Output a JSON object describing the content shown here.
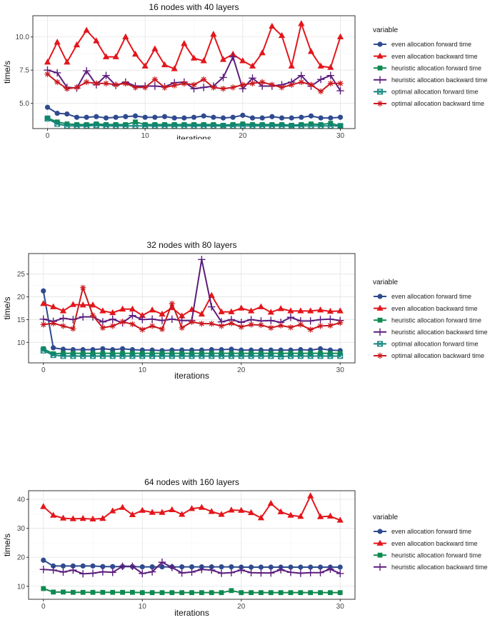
{
  "styles": {
    "even allocation forward time": {
      "color": "#2f4b8f",
      "shape": "circle"
    },
    "even allocation backward time": {
      "color": "#e3161b",
      "shape": "triangle"
    },
    "heuristic allocation forward time": {
      "color": "#0f8a4f",
      "shape": "square"
    },
    "heuristic allocation backward time": {
      "color": "#5b1d7d",
      "shape": "plus"
    },
    "optimal allocation forward time": {
      "color": "#12857e",
      "shape": "square-x"
    },
    "optimal allocation backward time": {
      "color": "#c9181e",
      "shape": "asterisk"
    }
  },
  "chart_data": [
    {
      "type": "line",
      "title": "16 nodes with 40 layers",
      "xlabel": "iterations",
      "ylabel": "time/s",
      "legend_title": "variable",
      "legend_position": "right",
      "xlim": [
        -1.5,
        31.5
      ],
      "ylim": [
        3.1,
        11.6
      ],
      "xticks": [
        0,
        10,
        20,
        30
      ],
      "yticks": [
        5.0,
        7.5,
        10.0
      ],
      "ytick_labels": [
        "5.0",
        "7.5",
        "10.0"
      ],
      "grid": true,
      "x": [
        0,
        1,
        2,
        3,
        4,
        5,
        6,
        7,
        8,
        9,
        10,
        11,
        12,
        13,
        14,
        15,
        16,
        17,
        18,
        19,
        20,
        21,
        22,
        23,
        24,
        25,
        26,
        27,
        28,
        29,
        30
      ],
      "series": [
        {
          "name": "even allocation forward time",
          "values": [
            4.7,
            4.25,
            4.2,
            3.95,
            3.95,
            4.0,
            3.9,
            3.95,
            4.0,
            4.05,
            3.95,
            3.95,
            4.0,
            3.9,
            3.9,
            3.95,
            4.05,
            3.95,
            3.9,
            3.95,
            4.1,
            3.9,
            3.9,
            4.0,
            3.9,
            3.9,
            3.95,
            4.05,
            3.9,
            3.9,
            3.95
          ]
        },
        {
          "name": "even allocation backward time",
          "values": [
            8.1,
            9.6,
            8.1,
            9.4,
            10.5,
            9.7,
            8.5,
            8.5,
            10.0,
            8.7,
            7.8,
            9.1,
            7.9,
            7.6,
            9.5,
            8.4,
            8.2,
            10.2,
            8.3,
            8.7,
            8.2,
            7.8,
            8.8,
            10.8,
            10.1,
            7.8,
            11.0,
            8.9,
            7.8,
            7.7,
            10.0
          ]
        },
        {
          "name": "heuristic allocation forward time",
          "values": [
            3.9,
            3.6,
            3.45,
            3.4,
            3.4,
            3.45,
            3.4,
            3.4,
            3.4,
            3.6,
            3.4,
            3.4,
            3.4,
            3.4,
            3.4,
            3.4,
            3.4,
            3.4,
            3.35,
            3.4,
            3.45,
            3.4,
            3.4,
            3.4,
            3.4,
            3.35,
            3.4,
            3.45,
            3.4,
            3.5,
            3.3
          ]
        },
        {
          "name": "heuristic allocation backward time",
          "values": [
            7.5,
            7.3,
            6.2,
            6.15,
            7.45,
            6.4,
            7.1,
            6.35,
            6.6,
            6.3,
            6.3,
            6.3,
            6.25,
            6.55,
            6.6,
            6.1,
            6.2,
            6.3,
            6.95,
            8.5,
            6.1,
            6.9,
            6.3,
            6.3,
            6.4,
            6.6,
            7.1,
            6.3,
            6.8,
            7.1,
            5.95
          ]
        },
        {
          "name": "optimal allocation forward time",
          "values": [
            3.85,
            3.45,
            3.3,
            3.3,
            3.3,
            3.35,
            3.3,
            3.3,
            3.3,
            3.3,
            3.3,
            3.3,
            3.3,
            3.3,
            3.3,
            3.3,
            3.3,
            3.3,
            3.3,
            3.3,
            3.3,
            3.3,
            3.3,
            3.3,
            3.3,
            3.3,
            3.3,
            3.3,
            3.3,
            3.3,
            3.3
          ]
        },
        {
          "name": "optimal allocation backward time",
          "values": [
            7.2,
            6.6,
            6.1,
            6.2,
            6.6,
            6.5,
            6.5,
            6.4,
            6.5,
            6.2,
            6.2,
            6.8,
            6.2,
            6.35,
            6.5,
            6.4,
            6.8,
            6.2,
            6.1,
            6.2,
            6.4,
            6.5,
            6.6,
            6.4,
            6.2,
            6.4,
            6.6,
            6.4,
            5.9,
            6.5,
            6.5
          ]
        }
      ]
    },
    {
      "type": "line",
      "title": "32 nodes with 80 layers",
      "xlabel": "iterations",
      "ylabel": "time/s",
      "legend_title": "variable",
      "legend_position": "right",
      "xlim": [
        -1.5,
        31.5
      ],
      "ylim": [
        5.5,
        29.5
      ],
      "xticks": [
        0,
        10,
        20,
        30
      ],
      "yticks": [
        10,
        15,
        20,
        25
      ],
      "ytick_labels": [
        "10",
        "15",
        "20",
        "25"
      ],
      "grid": true,
      "x": [
        0,
        1,
        2,
        3,
        4,
        5,
        6,
        7,
        8,
        9,
        10,
        11,
        12,
        13,
        14,
        15,
        16,
        17,
        18,
        19,
        20,
        21,
        22,
        23,
        24,
        25,
        26,
        27,
        28,
        29,
        30
      ],
      "series": [
        {
          "name": "even allocation forward time",
          "values": [
            21.3,
            8.8,
            8.5,
            8.4,
            8.4,
            8.4,
            8.6,
            8.4,
            8.6,
            8.4,
            8.3,
            8.3,
            8.2,
            8.3,
            8.3,
            8.3,
            8.3,
            8.4,
            8.4,
            8.5,
            8.3,
            8.3,
            8.3,
            8.3,
            8.3,
            8.3,
            8.4,
            8.3,
            8.6,
            8.3,
            8.2
          ]
        },
        {
          "name": "even allocation backward time",
          "values": [
            18.5,
            17.8,
            16.9,
            18.3,
            18.2,
            18.2,
            16.9,
            16.5,
            17.3,
            17.3,
            15.9,
            17.1,
            16.2,
            17.6,
            15.8,
            17.2,
            16.2,
            20.3,
            16.7,
            16.7,
            17.5,
            16.9,
            17.8,
            16.6,
            17.4,
            16.9,
            16.9,
            16.9,
            17.1,
            16.8,
            16.9
          ]
        },
        {
          "name": "heuristic allocation forward time",
          "values": [
            8.6,
            7.5,
            7.6,
            7.6,
            7.6,
            7.6,
            7.6,
            7.6,
            7.6,
            7.6,
            7.6,
            7.6,
            7.6,
            7.6,
            7.6,
            7.6,
            7.6,
            7.6,
            7.6,
            7.6,
            7.6,
            7.6,
            7.6,
            7.6,
            7.6,
            7.6,
            7.6,
            7.6,
            7.6,
            7.6,
            7.6
          ]
        },
        {
          "name": "heuristic allocation backward time",
          "values": [
            15.1,
            14.6,
            15.3,
            15.0,
            15.6,
            15.6,
            14.5,
            15.1,
            14.3,
            15.9,
            15.0,
            15.1,
            14.8,
            15.1,
            14.8,
            14.8,
            28.2,
            17.8,
            14.5,
            15.0,
            14.4,
            15.0,
            14.7,
            14.8,
            14.4,
            15.5,
            14.7,
            14.7,
            15.0,
            15.1,
            14.8
          ]
        },
        {
          "name": "optimal allocation forward time",
          "values": [
            8.2,
            7.2,
            7.0,
            7.0,
            7.0,
            7.0,
            7.0,
            7.0,
            7.0,
            7.0,
            7.0,
            7.0,
            7.0,
            7.0,
            7.0,
            7.0,
            7.0,
            7.0,
            7.0,
            7.0,
            7.0,
            7.0,
            7.0,
            7.0,
            6.9,
            7.0,
            7.0,
            7.0,
            7.0,
            7.0,
            7.0
          ]
        },
        {
          "name": "optimal allocation backward time",
          "values": [
            13.9,
            14.2,
            13.6,
            13.0,
            22.0,
            15.9,
            13.2,
            13.6,
            14.5,
            14.0,
            12.8,
            13.6,
            12.9,
            18.5,
            13.2,
            14.5,
            14.1,
            14.1,
            13.6,
            14.2,
            13.4,
            13.9,
            13.8,
            13.2,
            13.7,
            13.3,
            13.9,
            12.8,
            13.6,
            13.7,
            14.3
          ]
        }
      ]
    },
    {
      "type": "line",
      "title": "64 nodes with 160 layers",
      "xlabel": "iterations",
      "ylabel": "time/s",
      "legend_title": "variable",
      "legend_position": "right",
      "xlim": [
        -1.5,
        31.5
      ],
      "ylim": [
        5.5,
        43.0
      ],
      "xticks": [
        0,
        10,
        20,
        30
      ],
      "yticks": [
        10,
        20,
        30,
        40
      ],
      "ytick_labels": [
        "10",
        "20",
        "30",
        "40"
      ],
      "grid": true,
      "x": [
        0,
        1,
        2,
        3,
        4,
        5,
        6,
        7,
        8,
        9,
        10,
        11,
        12,
        13,
        14,
        15,
        16,
        17,
        18,
        19,
        20,
        21,
        22,
        23,
        24,
        25,
        26,
        27,
        28,
        29,
        30
      ],
      "series": [
        {
          "name": "even allocation forward time",
          "values": [
            19.0,
            17.0,
            17.0,
            17.0,
            17.0,
            17.0,
            16.8,
            16.8,
            16.8,
            16.8,
            16.7,
            16.7,
            16.7,
            16.7,
            16.7,
            16.7,
            16.7,
            16.7,
            16.7,
            16.7,
            16.6,
            16.6,
            16.6,
            16.6,
            16.6,
            16.6,
            16.6,
            16.6,
            16.6,
            16.6,
            16.6
          ]
        },
        {
          "name": "even allocation backward time",
          "values": [
            37.5,
            34.5,
            33.5,
            33.3,
            33.4,
            33.2,
            33.4,
            36.0,
            37.2,
            34.7,
            36.2,
            35.5,
            35.5,
            36.4,
            34.8,
            36.8,
            37.2,
            35.8,
            34.8,
            36.3,
            36.2,
            35.4,
            33.6,
            38.6,
            35.7,
            34.5,
            34.1,
            41.2,
            34.0,
            34.2,
            32.8
          ]
        },
        {
          "name": "heuristic allocation forward time",
          "values": [
            9.2,
            8.0,
            8.0,
            7.9,
            7.9,
            7.9,
            7.9,
            7.9,
            7.9,
            7.9,
            7.8,
            7.8,
            7.8,
            7.8,
            7.8,
            7.8,
            7.8,
            7.8,
            7.8,
            8.5,
            7.8,
            7.8,
            7.8,
            7.8,
            7.8,
            7.8,
            7.8,
            7.8,
            7.8,
            7.8,
            7.8
          ]
        },
        {
          "name": "heuristic allocation backward time",
          "values": [
            15.8,
            15.6,
            14.9,
            15.6,
            14.3,
            14.5,
            15.0,
            14.8,
            16.9,
            16.9,
            14.4,
            15.0,
            18.3,
            16.5,
            14.6,
            14.9,
            15.8,
            15.6,
            14.5,
            14.7,
            15.6,
            14.7,
            14.6,
            14.6,
            15.7,
            14.8,
            14.5,
            14.7,
            14.7,
            15.9,
            14.4
          ]
        }
      ]
    }
  ]
}
